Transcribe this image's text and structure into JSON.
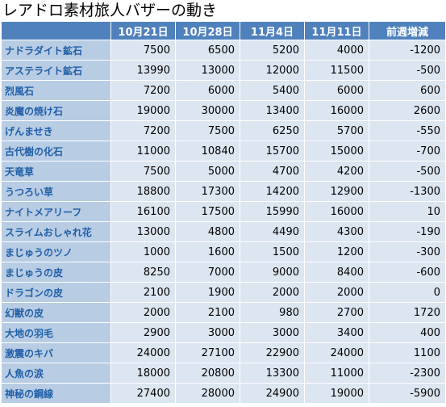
{
  "title": "レアドロ素材旅人バザーの動き",
  "table": {
    "columns": [
      "",
      "10月21日",
      "10月28日",
      "11月4日",
      "11月11日",
      "前週増減"
    ],
    "rows": [
      [
        "ナドラダイト鉱石",
        7500,
        6500,
        5200,
        4000,
        -1200
      ],
      [
        "アステライト鉱石",
        13990,
        13000,
        12000,
        11500,
        -500
      ],
      [
        "烈風石",
        7200,
        6000,
        5400,
        6000,
        600
      ],
      [
        "炎魔の焼け石",
        19000,
        30000,
        13400,
        16000,
        2600
      ],
      [
        "げんませき",
        7200,
        7500,
        6250,
        5700,
        -550
      ],
      [
        "古代樹の化石",
        11000,
        10840,
        15700,
        15000,
        -700
      ],
      [
        "天竜草",
        7500,
        5000,
        4700,
        4200,
        -500
      ],
      [
        "うつろい草",
        18800,
        17300,
        14200,
        12900,
        -1300
      ],
      [
        "ナイトメアリーフ",
        16100,
        17500,
        15990,
        16000,
        10
      ],
      [
        "スライムおしゃれ花",
        13000,
        4800,
        4490,
        4300,
        -190
      ],
      [
        "まじゅうのツノ",
        1000,
        1600,
        1500,
        1200,
        -300
      ],
      [
        "まじゅうの皮",
        8250,
        7000,
        9000,
        8400,
        -600
      ],
      [
        "ドラゴンの皮",
        2100,
        1900,
        2000,
        2000,
        0
      ],
      [
        "幻獣の皮",
        2000,
        2100,
        980,
        2700,
        1720
      ],
      [
        "大地の羽毛",
        2900,
        3000,
        3000,
        3400,
        400
      ],
      [
        "激震のキバ",
        24000,
        27100,
        22900,
        24000,
        1100
      ],
      [
        "人魚の涙",
        18000,
        20800,
        13300,
        11000,
        -2300
      ],
      [
        "神秘の鋼線",
        27400,
        28000,
        24900,
        19000,
        -5900
      ]
    ]
  }
}
